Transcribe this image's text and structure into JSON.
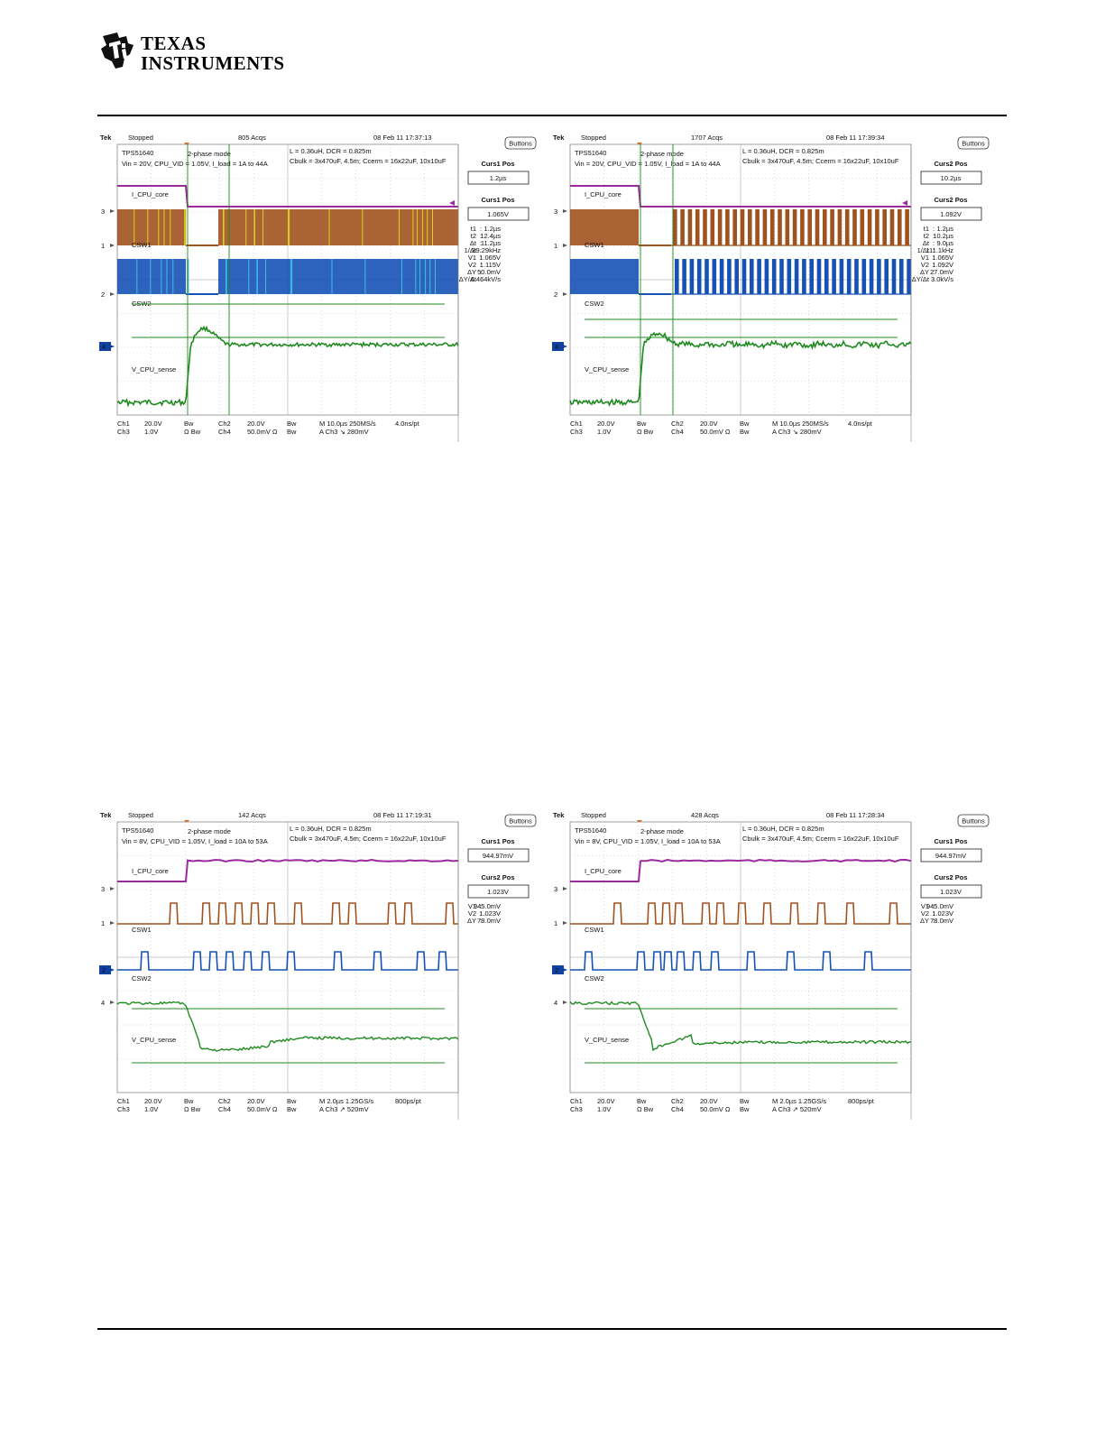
{
  "header": {
    "logo_line1": "Texas",
    "logo_line2": "Instruments"
  },
  "colors": {
    "ch1": "#a0521e",
    "ch2": "#1652b5",
    "ch3": "#9b2a9b",
    "ch4": "#1f8a1f",
    "grid": "#b8b8b8"
  },
  "scopes": [
    {
      "id": "scope-1",
      "tek": "Tek",
      "status": "Stopped",
      "acqs": "805 Acqs",
      "timestamp": "08 Feb 11 17:37:13",
      "note_left_1": "TPS51640",
      "note_left_2": "Vin = 20V, CPU_VID = 1.05V, I_load = 1A to 44A",
      "note_mode": "2-phase mode",
      "note_right_1": "L = 0.36uH, DCR = 0.825m",
      "note_right_2": "Cbulk = 3x470uF, 4.5m;  Ccerm = 16x22uF, 10x10uF",
      "label_ch3": "I_CPU_core",
      "label_ch1": "CSW1",
      "label_ch2": "CSW2",
      "label_ch4": "V_CPU_sense",
      "buttons": "Buttons",
      "curs_a_title": "Curs1 Pos",
      "curs_a_value": "1.2µs",
      "curs_b_title": "Curs1 Pos",
      "curs_b_value": "1.065V",
      "readouts": [
        [
          "t1",
          ":",
          "1.2µs"
        ],
        [
          "t2",
          ":",
          "12.4µs"
        ],
        [
          "Δt",
          ":",
          "11.2µs"
        ],
        [
          "1/Δt",
          ":",
          "89.29kHz"
        ],
        [
          "V1",
          ":",
          "1.065V"
        ],
        [
          "V2",
          ":",
          "1.115V"
        ],
        [
          "ΔY",
          ":",
          "50.0mV"
        ],
        [
          "ΔY/Δt",
          ":",
          "4.464kV/s"
        ]
      ],
      "footer_row1": [
        "Ch1",
        "20.0V",
        "Bw",
        "Ch2",
        "20.0V",
        "Bw",
        "M 10.0µs 250MS/s",
        "4.0ns/pt"
      ],
      "footer_row2": [
        "Ch3",
        "1.0V",
        "Ω Bw",
        "Ch4",
        "50.0mV Ω",
        "Bw",
        "A  Ch3  ↘  280mV",
        ""
      ],
      "trace_kind": "dense"
    },
    {
      "id": "scope-2",
      "tek": "Tek",
      "status": "Stopped",
      "acqs": "1707 Acqs",
      "timestamp": "08 Feb 11 17:39:34",
      "note_left_1": "TPS51640",
      "note_left_2": "Vin = 20V, CPU_VID = 1.05V, I_load = 1A to 44A",
      "note_mode": "2-phase mode",
      "note_right_1": "L = 0.36uH, DCR = 0.825m",
      "note_right_2": "Cbulk = 3x470uF, 4.5m;  Ccerm = 16x22uF, 10x10uF",
      "label_ch3": "I_CPU_core",
      "label_ch1": "CSW1",
      "label_ch2": "CSW2",
      "label_ch4": "V_CPU_sense",
      "buttons": "Buttons",
      "curs_a_title": "Curs2 Pos",
      "curs_a_value": "10.2µs",
      "curs_b_title": "Curs2 Pos",
      "curs_b_value": "1.092V",
      "readouts": [
        [
          "t1",
          ":",
          "1.2µs"
        ],
        [
          "t2",
          ":",
          "10.2µs"
        ],
        [
          "Δt",
          ":",
          "9.0µs"
        ],
        [
          "1/Δt",
          ":",
          "111.1kHz"
        ],
        [
          "V1",
          ":",
          "1.065V"
        ],
        [
          "V2",
          ":",
          "1.092V"
        ],
        [
          "ΔY",
          ":",
          "27.0mV"
        ],
        [
          "ΔY/Δt",
          ":",
          "3.0kV/s"
        ]
      ],
      "footer_row1": [
        "Ch1",
        "20.0V",
        "Bw",
        "Ch2",
        "20.0V",
        "Bw",
        "M 10.0µs 250MS/s",
        "4.0ns/pt"
      ],
      "footer_row2": [
        "Ch3",
        "1.0V",
        "Ω Bw",
        "Ch4",
        "50.0mV Ω",
        "Bw",
        "A  Ch3  ↘  280mV",
        ""
      ],
      "trace_kind": "pulses"
    },
    {
      "id": "scope-3",
      "tek": "Tek",
      "status": "Stopped",
      "acqs": "142 Acqs",
      "timestamp": "08 Feb 11 17:19:31",
      "note_left_1": "TPS51640",
      "note_left_2": "Vin = 8V, CPU_VID = 1.05V, I_load = 10A to 53A",
      "note_mode": "2-phase mode",
      "note_right_1": "L = 0.36uH, DCR = 0.825m",
      "note_right_2": "Cbulk = 3x470uF, 4.5m;  Ccerm = 16x22uF, 10x10uF",
      "label_ch3": "I_CPU_core",
      "label_ch1": "CSW1",
      "label_ch2": "CSW2",
      "label_ch4": "V_CPU_sense",
      "buttons": "Buttons",
      "curs_a_title": "Curs1 Pos",
      "curs_a_value": "944.97mV",
      "curs_b_title": "Curs2 Pos",
      "curs_b_value": "1.023V",
      "readouts": [
        [
          "V1",
          ":",
          "945.0mV"
        ],
        [
          "V2",
          ":",
          "1.023V"
        ],
        [
          "ΔY",
          ":",
          "78.0mV"
        ]
      ],
      "footer_row1": [
        "Ch1",
        "20.0V",
        "Bw",
        "Ch2",
        "20.0V",
        "Bw",
        "M 2.0µs 1.25GS/s",
        "800ps/pt"
      ],
      "footer_row2": [
        "Ch3",
        "1.0V",
        "Ω Bw",
        "Ch4",
        "50.0mV Ω",
        "Bw",
        "A  Ch3  ↗  520mV",
        ""
      ],
      "trace_kind": "sparse"
    },
    {
      "id": "scope-4",
      "tek": "Tek",
      "status": "Stopped",
      "acqs": "428 Acqs",
      "timestamp": "08 Feb 11 17:28:34",
      "note_left_1": "TPS51640",
      "note_left_2": "Vin = 8V, CPU_VID = 1.05V, I_load = 10A to 53A",
      "note_mode": "2-phase mode",
      "note_right_1": "L = 0.36uH, DCR = 0.825m",
      "note_right_2": "Cbulk = 3x470uF, 4.5m;  Ccerm = 16x22uF, 10x10uF",
      "label_ch3": "I_CPU_core",
      "label_ch1": "CSW1",
      "label_ch2": "CSW2",
      "label_ch4": "V_CPU_sense",
      "buttons": "Buttons",
      "curs_a_title": "Curs1 Pos",
      "curs_a_value": "944.97mV",
      "curs_b_title": "Curs2 Pos",
      "curs_b_value": "1.023V",
      "readouts": [
        [
          "V1",
          ":",
          "945.0mV"
        ],
        [
          "V2",
          ":",
          "1.023V"
        ],
        [
          "ΔY",
          ":",
          "78.0mV"
        ]
      ],
      "footer_row1": [
        "Ch1",
        "20.0V",
        "Bw",
        "Ch2",
        "20.0V",
        "Bw",
        "M 2.0µs 1.25GS/s",
        "800ps/pt"
      ],
      "footer_row2": [
        "Ch3",
        "1.0V",
        "Ω Bw",
        "Ch4",
        "50.0mV Ω",
        "Bw",
        "A  Ch3  ↗  520mV",
        ""
      ],
      "trace_kind": "sparse"
    }
  ]
}
